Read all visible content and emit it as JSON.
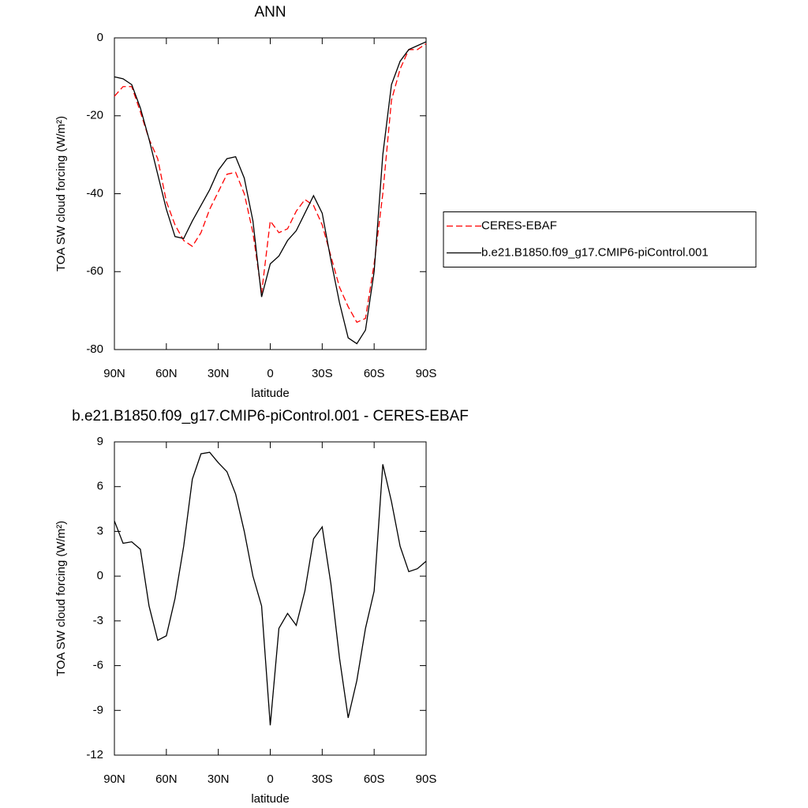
{
  "charts": [
    {
      "type": "line",
      "title": "ANN",
      "xlabel": "latitude",
      "ylabel": "TOA SW cloud forcing (W/m²)",
      "x": [
        90,
        85,
        80,
        75,
        70,
        65,
        60,
        55,
        50,
        45,
        40,
        35,
        30,
        25,
        20,
        15,
        10,
        5,
        0,
        -5,
        -10,
        -15,
        -20,
        -25,
        -30,
        -35,
        -40,
        -45,
        -50,
        -55,
        -60,
        -65,
        -70,
        -75,
        -80,
        -85,
        -90
      ],
      "series": [
        {
          "name": "CERES-EBAF",
          "color": "#ff0000",
          "linestyle": "dashed",
          "values": [
            -15,
            -12.5,
            -12.5,
            -19,
            -26,
            -31,
            -42,
            -48,
            -52,
            -53.5,
            -50,
            -44,
            -39.5,
            -35,
            -34.5,
            -40,
            -50,
            -65.5,
            -47,
            -50,
            -49,
            -44.5,
            -41.5,
            -43,
            -48,
            -56,
            -64,
            -69,
            -73,
            -72,
            -58,
            -40,
            -16,
            -8,
            -3,
            -3,
            -1.5
          ]
        },
        {
          "name": "b.e21.B1850.f09_g17.CMIP6-piControl.001",
          "color": "#000000",
          "linestyle": "solid",
          "values": [
            -10,
            -10.5,
            -12,
            -18,
            -26,
            -35,
            -44,
            -51,
            -51.5,
            -47,
            -43,
            -39,
            -34,
            -31,
            -30.5,
            -36,
            -47,
            -66.5,
            -58,
            -56,
            -52,
            -49.5,
            -45,
            -40.5,
            -45,
            -57,
            -68,
            -77,
            -78.5,
            -75,
            -60,
            -30,
            -12,
            -6,
            -3,
            -2,
            -1
          ]
        }
      ],
      "xlim": [
        90,
        -90
      ],
      "xticks": [
        {
          "value": 90,
          "label": "90N"
        },
        {
          "value": 60,
          "label": "60N"
        },
        {
          "value": 30,
          "label": "30N"
        },
        0,
        {
          "value": -30,
          "label": "30S"
        },
        {
          "value": -60,
          "label": "60S"
        },
        {
          "value": -90,
          "label": "90S"
        }
      ],
      "ylim": [
        -80,
        0
      ],
      "yticks": [
        0,
        -20,
        -40,
        -60,
        -80
      ],
      "legend": "right"
    },
    {
      "type": "line",
      "title": "b.e21.B1850.f09_g17.CMIP6-piControl.001 - CERES-EBAF",
      "xlabel": "latitude",
      "ylabel": "TOA SW cloud forcing (W/m²)",
      "x": [
        90,
        85,
        80,
        75,
        70,
        65,
        60,
        55,
        50,
        45,
        40,
        35,
        30,
        25,
        20,
        15,
        10,
        5,
        0,
        -5,
        -10,
        -15,
        -20,
        -25,
        -30,
        -35,
        -40,
        -45,
        -50,
        -55,
        -60,
        -65,
        -70,
        -75,
        -80,
        -85,
        -90
      ],
      "values": [
        3.7,
        2.2,
        2.3,
        1.8,
        -2,
        -4.3,
        -4,
        -1.5,
        2,
        6.5,
        8.2,
        8.3,
        7.6,
        7,
        5.5,
        3,
        0,
        -2,
        -10,
        -3.5,
        -2.5,
        -3.3,
        -1,
        2.5,
        3.3,
        -0.5,
        -5.5,
        -9.5,
        -7,
        -3.5,
        -1,
        7.5,
        5,
        2,
        0.3,
        0.5,
        1
      ],
      "color": "#000000",
      "xlim": [
        90,
        -90
      ],
      "xticks": [
        {
          "value": 90,
          "label": "90N"
        },
        {
          "value": 60,
          "label": "60N"
        },
        {
          "value": 30,
          "label": "30N"
        },
        0,
        {
          "value": -30,
          "label": "30S"
        },
        {
          "value": -60,
          "label": "60S"
        },
        {
          "value": -90,
          "label": "90S"
        }
      ],
      "ylim": [
        -12,
        9
      ],
      "yticks": [
        9,
        6,
        3,
        0,
        -3,
        -6,
        -9,
        -12
      ]
    }
  ]
}
